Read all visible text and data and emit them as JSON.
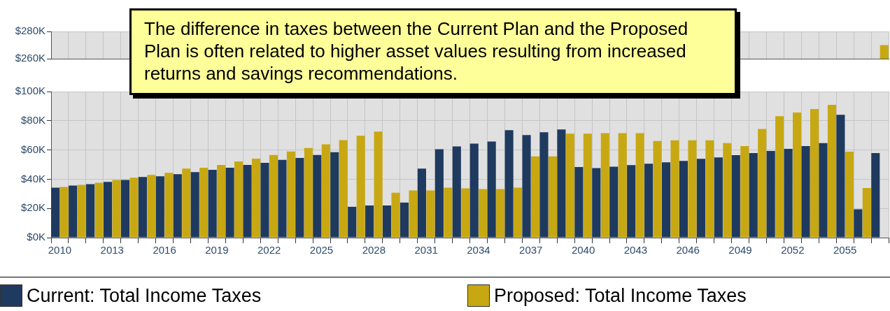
{
  "chart_data": [
    {
      "type": "bar",
      "categories": [
        "2010",
        null,
        null,
        "2013",
        null,
        null,
        "2016",
        null,
        null,
        "2019",
        null,
        null,
        "2022",
        null,
        null,
        "2025",
        null,
        null,
        "2028",
        null,
        null,
        "2031",
        null,
        null,
        "2034",
        null,
        null,
        "2037",
        null,
        null,
        "2040",
        null,
        null,
        "2043",
        null,
        null,
        "2046",
        null,
        null,
        "2049",
        null,
        null,
        "2052",
        null,
        null,
        "2055",
        null,
        null
      ],
      "series": [
        {
          "color": "#1f3a5f",
          "values": [
            null,
            null,
            null,
            null,
            null,
            null,
            null,
            null,
            null,
            null,
            null,
            null,
            null,
            null,
            null,
            null,
            null,
            null,
            null,
            null,
            null,
            null,
            null,
            null,
            null,
            null,
            null,
            null,
            null,
            null,
            null,
            null,
            null,
            null,
            null,
            null,
            null,
            null,
            null,
            null,
            null,
            null,
            null,
            null,
            null,
            null,
            null,
            null
          ]
        },
        {
          "color": "#c8a812",
          "values": [
            null,
            null,
            null,
            null,
            null,
            null,
            null,
            null,
            null,
            null,
            null,
            null,
            null,
            null,
            null,
            null,
            null,
            null,
            null,
            null,
            null,
            null,
            null,
            null,
            null,
            null,
            null,
            null,
            null,
            null,
            null,
            null,
            null,
            null,
            null,
            null,
            null,
            null,
            null,
            null,
            null,
            null,
            null,
            null,
            null,
            null,
            null,
            270
          ]
        }
      ],
      "ylim": [
        260,
        280
      ],
      "yticks": [
        {
          "value": 260,
          "label": "$260K"
        },
        {
          "value": 280,
          "label": "$280K"
        }
      ],
      "tick_labels": "y",
      "grid": true,
      "annotations": [
        "The difference in taxes between the Current Plan and the Proposed Plan is often related to higher asset values resulting from increased returns and savings recommendations."
      ]
    },
    {
      "type": "bar",
      "categories": [
        "2010",
        null,
        null,
        "2013",
        null,
        null,
        "2016",
        null,
        null,
        "2019",
        null,
        null,
        "2022",
        null,
        null,
        "2025",
        null,
        null,
        "2028",
        null,
        null,
        "2031",
        null,
        null,
        "2034",
        null,
        null,
        "2037",
        null,
        null,
        "2040",
        null,
        null,
        "2043",
        null,
        null,
        "2046",
        null,
        null,
        "2049",
        null,
        null,
        "2052",
        null,
        null,
        "2055",
        null,
        null
      ],
      "series": [
        {
          "name": "Current: Total Income Taxes",
          "color": "#1f3a5f",
          "values": [
            34.2,
            35.7,
            36.6,
            38.1,
            39.5,
            41.5,
            42.0,
            43.4,
            44.9,
            46.4,
            47.8,
            49.8,
            51.2,
            53.2,
            54.6,
            56.6,
            58.5,
            21.1,
            22.0,
            22.0,
            24.0,
            47.3,
            60.5,
            62.4,
            64.3,
            65.8,
            73.6,
            70.2,
            72.1,
            74.1,
            48.3,
            47.6,
            48.6,
            49.6,
            50.6,
            51.5,
            52.5,
            54.0,
            54.9,
            56.4,
            57.9,
            59.3,
            60.8,
            62.7,
            64.7,
            84.1,
            19.4,
            57.9
          ]
        },
        {
          "name": "Proposed: Total Income Taxes",
          "color": "#c8a812",
          "values": [
            34.7,
            36.1,
            37.6,
            39.5,
            41.0,
            43.0,
            44.4,
            47.3,
            47.8,
            49.8,
            52.2,
            54.1,
            56.6,
            59.0,
            61.4,
            63.9,
            66.8,
            69.7,
            72.6,
            30.8,
            32.3,
            32.3,
            34.2,
            33.7,
            33.2,
            33.2,
            34.2,
            55.6,
            55.6,
            71.2,
            71.2,
            71.5,
            71.5,
            71.5,
            66.1,
            66.6,
            66.6,
            66.6,
            64.7,
            62.7,
            74.4,
            83.1,
            85.6,
            88.0,
            90.9,
            58.8,
            34.0,
            null
          ]
        }
      ],
      "ylim": [
        0,
        100
      ],
      "yticks": [
        {
          "value": 0,
          "label": "$0K"
        },
        {
          "value": 20,
          "label": "$20K"
        },
        {
          "value": 40,
          "label": "$40K"
        },
        {
          "value": 60,
          "label": "$60K"
        },
        {
          "value": 80,
          "label": "$80K"
        },
        {
          "value": 100,
          "label": "$100K"
        }
      ],
      "grid": true,
      "legend": "bottom"
    }
  ]
}
